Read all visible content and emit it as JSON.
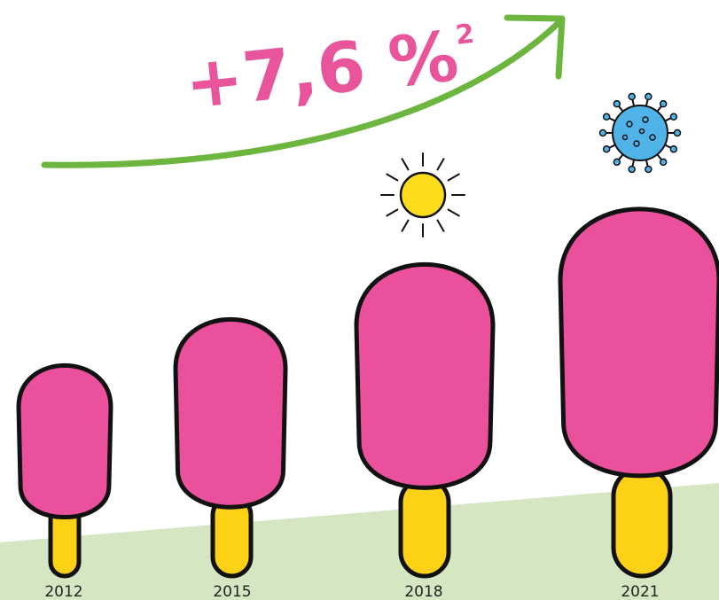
{
  "headline": {
    "text": "+7,6 %",
    "footnote": "2"
  },
  "years": [
    "2012",
    "2015",
    "2018",
    "2021"
  ]
}
